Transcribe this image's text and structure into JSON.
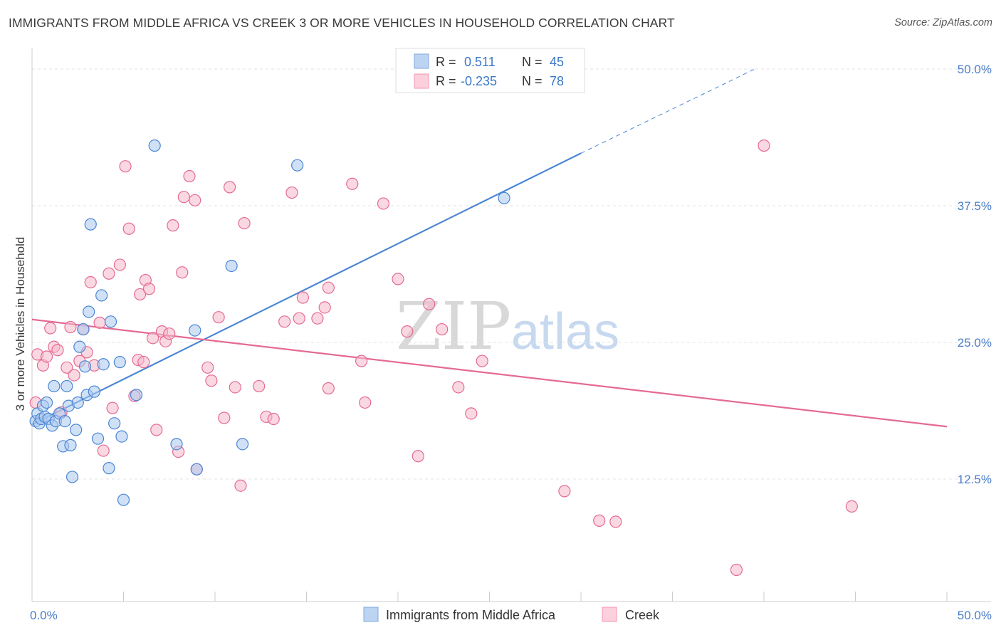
{
  "title": "IMMIGRANTS FROM MIDDLE AFRICA VS CREEK 3 OR MORE VEHICLES IN HOUSEHOLD CORRELATION CHART",
  "source": "Source: ZipAtlas.com",
  "watermark": {
    "zip": "ZIP",
    "atlas": "atlas"
  },
  "legend_top": {
    "r_label": "R =",
    "n_label": "N =",
    "rows": [
      {
        "r": "0.511",
        "n": "45",
        "color": "#a9c8ef"
      },
      {
        "r": "-0.235",
        "n": "78",
        "color": "#f6b8cb"
      }
    ]
  },
  "chart_data": {
    "type": "scatter",
    "xlabel": "",
    "ylabel": "3 or more Vehicles in Household",
    "xlim": [
      0,
      50
    ],
    "ylim": [
      0,
      50
    ],
    "x_tick_labels": [
      "0.0%",
      "50.0%"
    ],
    "y_tick_labels": [
      "12.5%",
      "25.0%",
      "37.5%",
      "50.0%"
    ],
    "y_ticks": [
      12.5,
      25.0,
      37.5,
      50.0
    ],
    "grid": true,
    "legend_position": "bottom",
    "series": [
      {
        "name": "Immigrants from Middle Africa",
        "color": "#4a86d4",
        "fill": "#a9c8ef",
        "trend": {
          "x": [
            0,
            30
          ],
          "y": [
            17.5,
            42.3
          ],
          "dashed_to": [
            39.5,
            50.0
          ]
        },
        "points": [
          [
            0.2,
            17.8
          ],
          [
            0.3,
            18.5
          ],
          [
            0.4,
            17.6
          ],
          [
            0.5,
            18.0
          ],
          [
            0.6,
            19.2
          ],
          [
            0.7,
            18.2
          ],
          [
            0.8,
            19.5
          ],
          [
            0.9,
            18.0
          ],
          [
            1.1,
            17.4
          ],
          [
            1.2,
            21.0
          ],
          [
            1.3,
            17.8
          ],
          [
            1.5,
            18.5
          ],
          [
            1.7,
            15.5
          ],
          [
            1.8,
            17.8
          ],
          [
            1.9,
            21.0
          ],
          [
            2.0,
            19.2
          ],
          [
            2.1,
            15.6
          ],
          [
            2.2,
            12.7
          ],
          [
            2.4,
            17.0
          ],
          [
            2.5,
            19.5
          ],
          [
            2.6,
            24.6
          ],
          [
            2.8,
            26.2
          ],
          [
            2.9,
            22.8
          ],
          [
            3.0,
            20.2
          ],
          [
            3.1,
            27.8
          ],
          [
            3.2,
            35.8
          ],
          [
            3.4,
            20.5
          ],
          [
            3.6,
            16.2
          ],
          [
            3.8,
            29.3
          ],
          [
            3.9,
            23.0
          ],
          [
            4.2,
            13.5
          ],
          [
            4.3,
            26.9
          ],
          [
            4.5,
            17.6
          ],
          [
            4.8,
            23.2
          ],
          [
            4.9,
            16.4
          ],
          [
            5.0,
            10.6
          ],
          [
            5.7,
            20.2
          ],
          [
            6.7,
            43.0
          ],
          [
            7.9,
            15.7
          ],
          [
            8.9,
            26.1
          ],
          [
            9.0,
            13.4
          ],
          [
            10.9,
            32.0
          ],
          [
            11.5,
            15.7
          ],
          [
            14.5,
            41.2
          ],
          [
            25.8,
            38.2
          ]
        ]
      },
      {
        "name": "Creek",
        "color": "#e56a93",
        "fill": "#f6b8cb",
        "trend": {
          "x": [
            0,
            50
          ],
          "y": [
            27.1,
            17.3
          ]
        },
        "points": [
          [
            0.2,
            19.5
          ],
          [
            0.3,
            23.9
          ],
          [
            0.6,
            22.9
          ],
          [
            0.8,
            23.7
          ],
          [
            1.0,
            26.3
          ],
          [
            1.2,
            24.6
          ],
          [
            1.4,
            24.3
          ],
          [
            1.6,
            18.6
          ],
          [
            1.9,
            22.7
          ],
          [
            2.1,
            26.4
          ],
          [
            2.3,
            22.0
          ],
          [
            2.6,
            23.3
          ],
          [
            2.8,
            26.2
          ],
          [
            3.0,
            24.1
          ],
          [
            3.2,
            30.5
          ],
          [
            3.4,
            22.9
          ],
          [
            3.7,
            26.8
          ],
          [
            3.9,
            15.1
          ],
          [
            4.2,
            31.3
          ],
          [
            4.4,
            19.0
          ],
          [
            4.8,
            32.1
          ],
          [
            5.1,
            41.1
          ],
          [
            5.3,
            35.4
          ],
          [
            5.6,
            20.1
          ],
          [
            5.8,
            23.4
          ],
          [
            5.9,
            29.4
          ],
          [
            6.1,
            23.2
          ],
          [
            6.2,
            30.7
          ],
          [
            6.4,
            29.9
          ],
          [
            6.6,
            25.4
          ],
          [
            6.8,
            17.0
          ],
          [
            7.1,
            26.0
          ],
          [
            7.3,
            25.1
          ],
          [
            7.5,
            25.8
          ],
          [
            7.7,
            35.7
          ],
          [
            8.0,
            15.0
          ],
          [
            8.2,
            31.4
          ],
          [
            8.3,
            38.3
          ],
          [
            8.6,
            40.2
          ],
          [
            8.9,
            38.0
          ],
          [
            9.0,
            13.4
          ],
          [
            9.6,
            22.7
          ],
          [
            9.8,
            21.5
          ],
          [
            10.2,
            27.3
          ],
          [
            10.5,
            18.1
          ],
          [
            10.8,
            39.2
          ],
          [
            11.1,
            20.9
          ],
          [
            11.4,
            11.9
          ],
          [
            11.6,
            35.9
          ],
          [
            12.4,
            21.0
          ],
          [
            12.8,
            18.2
          ],
          [
            13.2,
            18.0
          ],
          [
            13.8,
            26.9
          ],
          [
            14.2,
            38.7
          ],
          [
            14.6,
            27.2
          ],
          [
            14.8,
            29.1
          ],
          [
            15.6,
            27.2
          ],
          [
            16.0,
            28.2
          ],
          [
            16.2,
            30.0
          ],
          [
            16.2,
            20.8
          ],
          [
            17.5,
            39.5
          ],
          [
            18.0,
            23.3
          ],
          [
            18.2,
            19.5
          ],
          [
            19.2,
            37.7
          ],
          [
            20.0,
            30.8
          ],
          [
            20.5,
            26.0
          ],
          [
            21.1,
            14.6
          ],
          [
            21.7,
            28.5
          ],
          [
            22.4,
            26.2
          ],
          [
            23.3,
            20.9
          ],
          [
            24.0,
            18.5
          ],
          [
            24.6,
            23.3
          ],
          [
            29.1,
            11.4
          ],
          [
            31.0,
            8.7
          ],
          [
            31.9,
            8.6
          ],
          [
            38.5,
            4.2
          ],
          [
            40.0,
            43.0
          ],
          [
            44.8,
            10.0
          ]
        ]
      }
    ]
  }
}
